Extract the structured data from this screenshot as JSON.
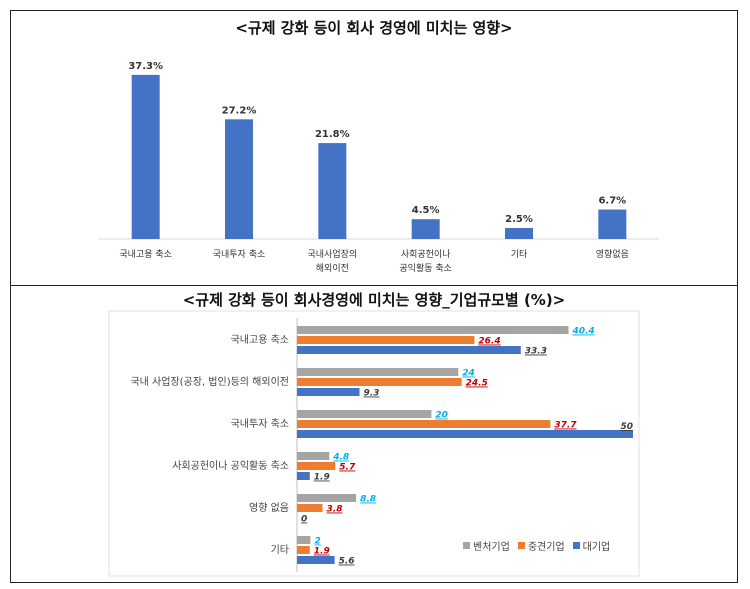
{
  "colors": {
    "primary_bar": "#4472C4",
    "venture": "#A5A5A5",
    "midsize": "#ED7D31",
    "large": "#4472C4",
    "venture_label": "#00B0F0",
    "midsize_label": "#C00000",
    "large_label": "#404040"
  },
  "chart_data": [
    {
      "type": "bar",
      "title": "<규제 강화 등이 회사 경영에 미치는 영향>",
      "categories": [
        [
          "국내고용 축소"
        ],
        [
          "국내투자 축소"
        ],
        [
          "국내사업장의",
          "해외이전"
        ],
        [
          "사회공헌이나",
          "공익활동 축소"
        ],
        [
          "기타"
        ],
        [
          "영향없음"
        ]
      ],
      "values": [
        37.3,
        27.2,
        21.8,
        4.5,
        2.5,
        6.7
      ],
      "value_labels": [
        "37.3%",
        "27.2%",
        "21.8%",
        "4.5%",
        "2.5%",
        "6.7%"
      ],
      "ylim": [
        0,
        40
      ],
      "grid": false,
      "legend": "none"
    },
    {
      "type": "bar",
      "orientation": "horizontal",
      "title": "<규제 강화 등이 회사경영에 미치는 영향_기업규모별 (%)>",
      "categories": [
        "국내고용 축소",
        "국내 사업장(공장, 법인)등의 해외이전",
        "국내투자 축소",
        "사회공헌이나 공익활동 축소",
        "영향 없음",
        "기타"
      ],
      "series": [
        {
          "name": "벤처기업",
          "values": [
            40.4,
            24,
            20,
            4.8,
            8.8,
            2
          ],
          "labels": [
            "40.4",
            "24",
            "20",
            "4.8",
            "8.8",
            "2"
          ]
        },
        {
          "name": "중견기업",
          "values": [
            26.4,
            24.5,
            37.7,
            5.7,
            3.8,
            1.9
          ],
          "labels": [
            "26.4",
            "24.5",
            "37.7",
            "5.7",
            "3.8",
            "1.9"
          ]
        },
        {
          "name": "대기업",
          "values": [
            33.3,
            9.3,
            50,
            1.9,
            0,
            5.6
          ],
          "labels": [
            "33.3",
            "9.3",
            "50",
            "1.9",
            "0",
            "5.6"
          ]
        }
      ],
      "xlim": [
        0,
        50
      ],
      "grid": false,
      "legend": "bottom-right"
    }
  ]
}
